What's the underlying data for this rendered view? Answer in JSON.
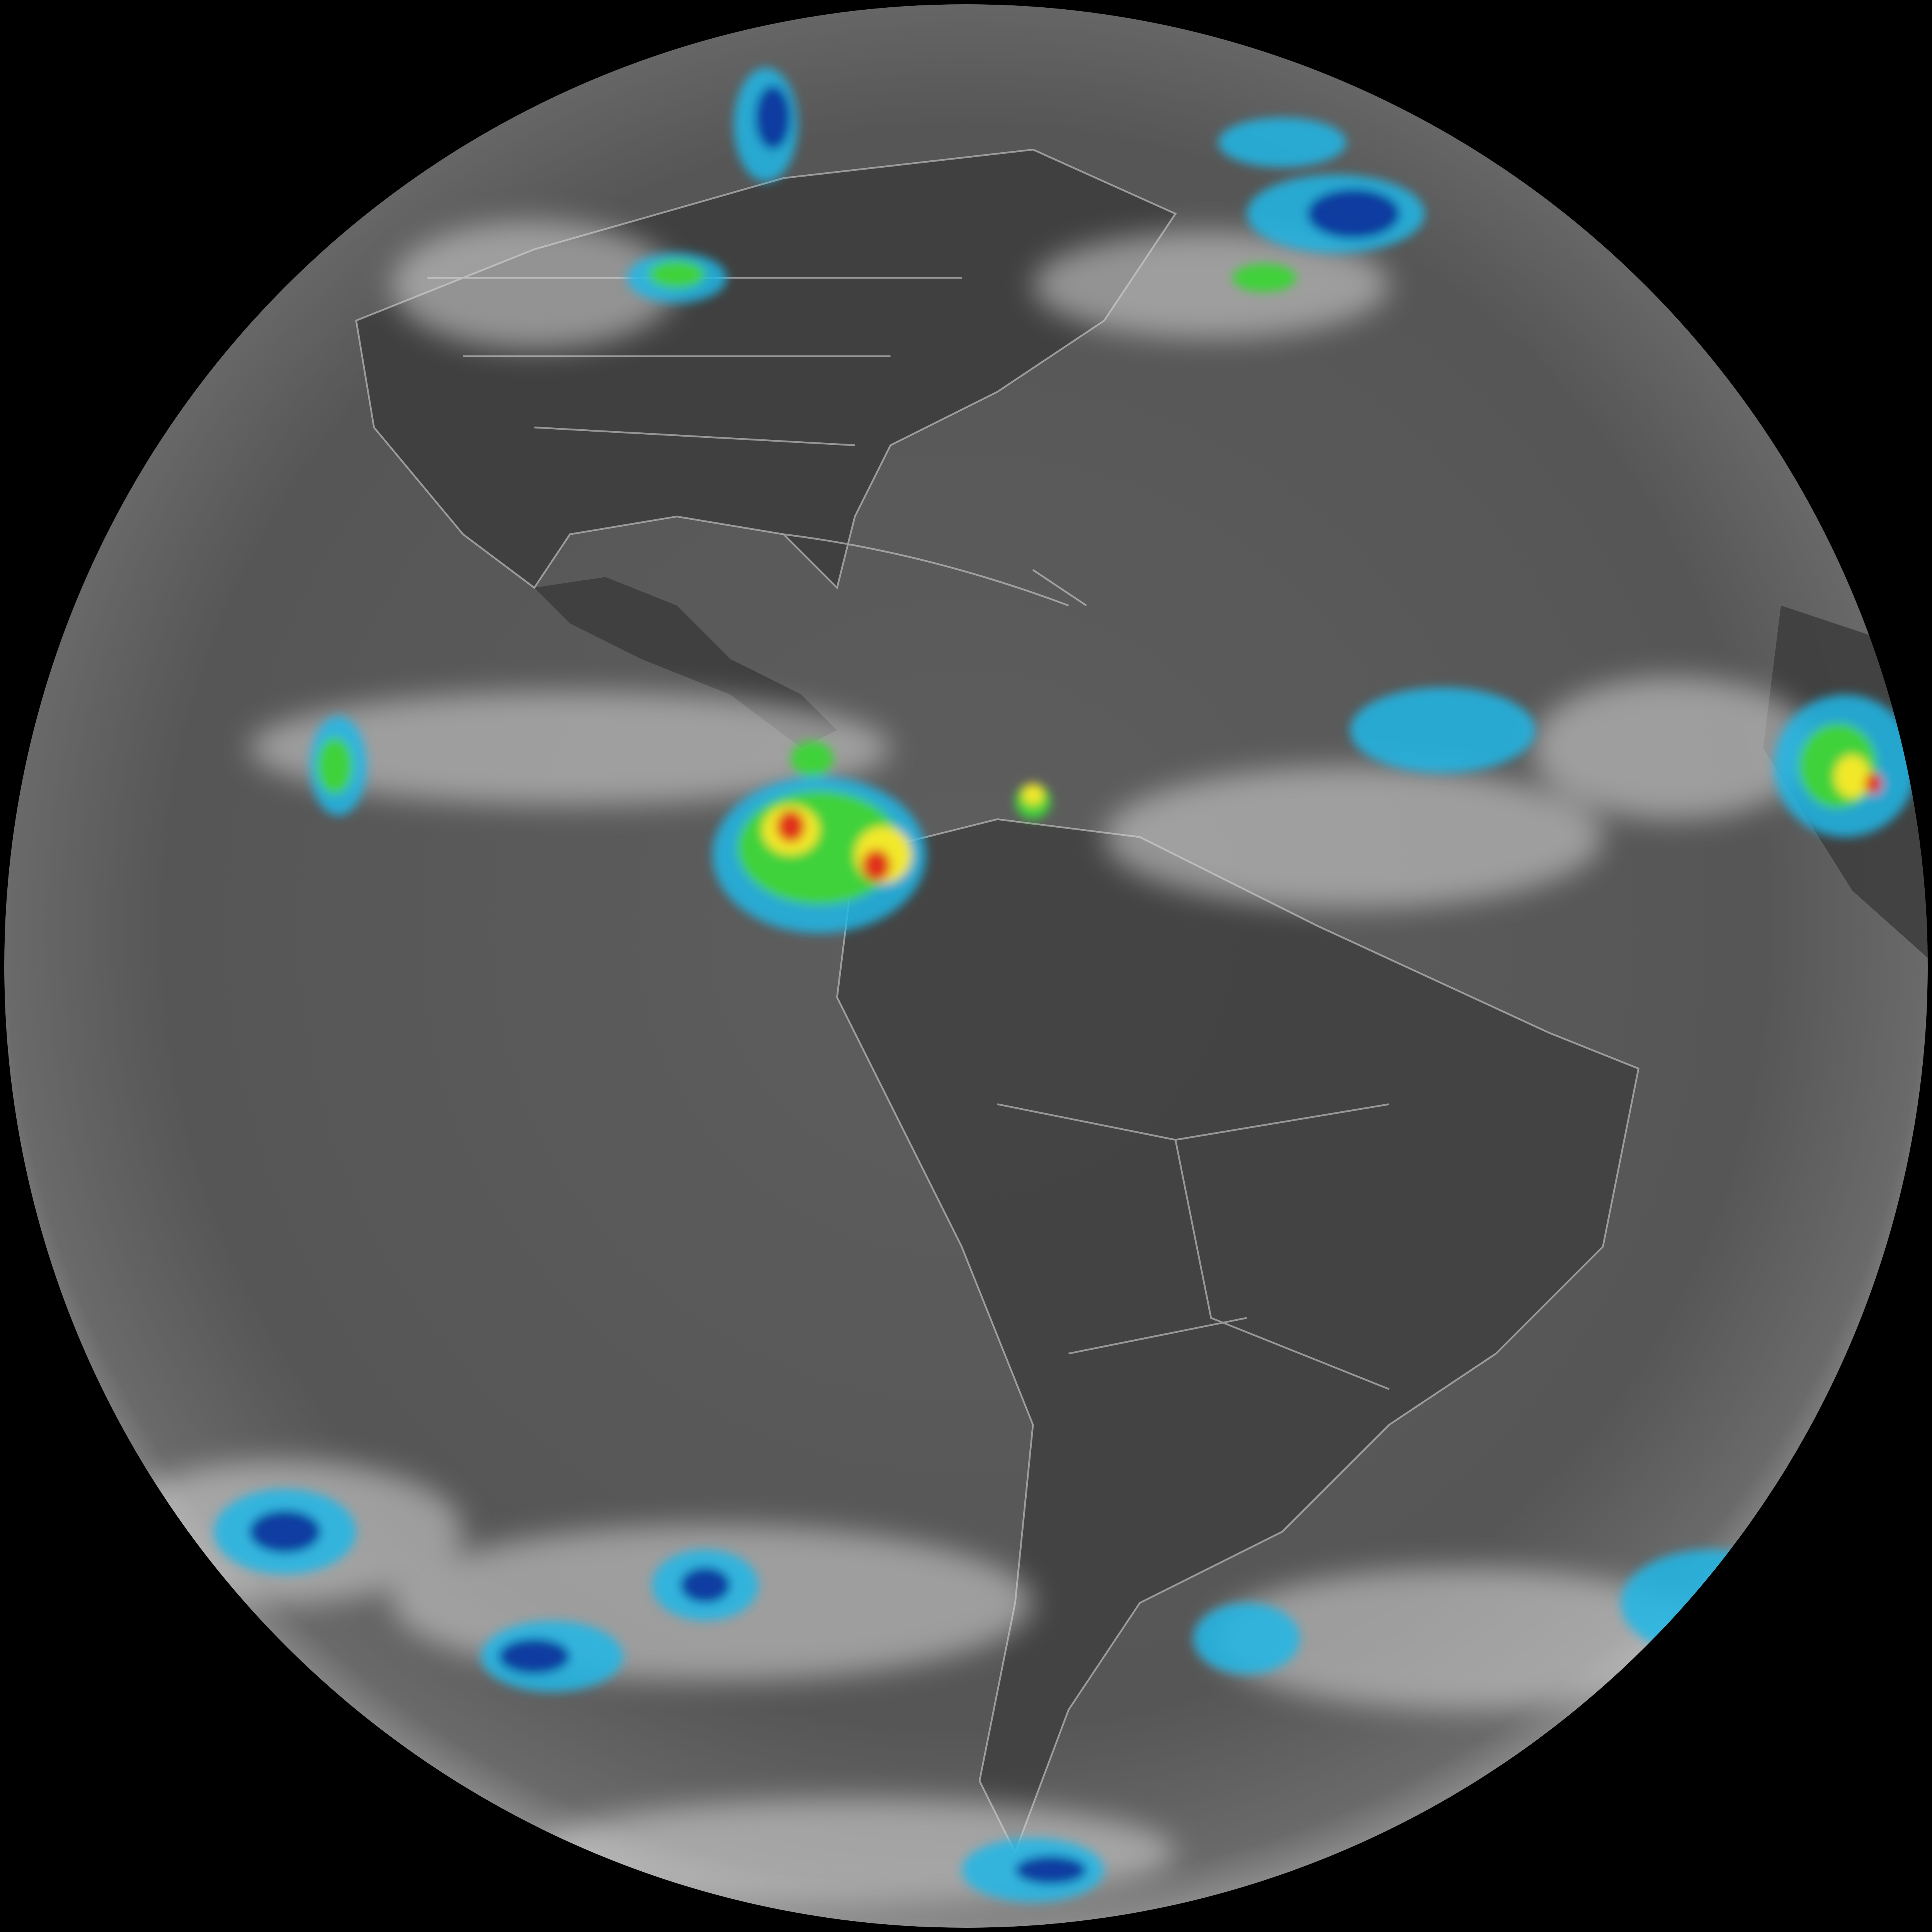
{
  "colors": {
    "space": "#000000",
    "ocean_gray": "#5a5a5a",
    "land_dark": "#3a3a3a",
    "cloud_white": "#d8d8d8",
    "cold_cyan": "#22b8e8",
    "cold_blue": "#0a2f9a",
    "green": "#3fd23a",
    "yellow": "#f2e82a",
    "red": "#e0301c",
    "border_line": "#cfcfcf"
  }
}
